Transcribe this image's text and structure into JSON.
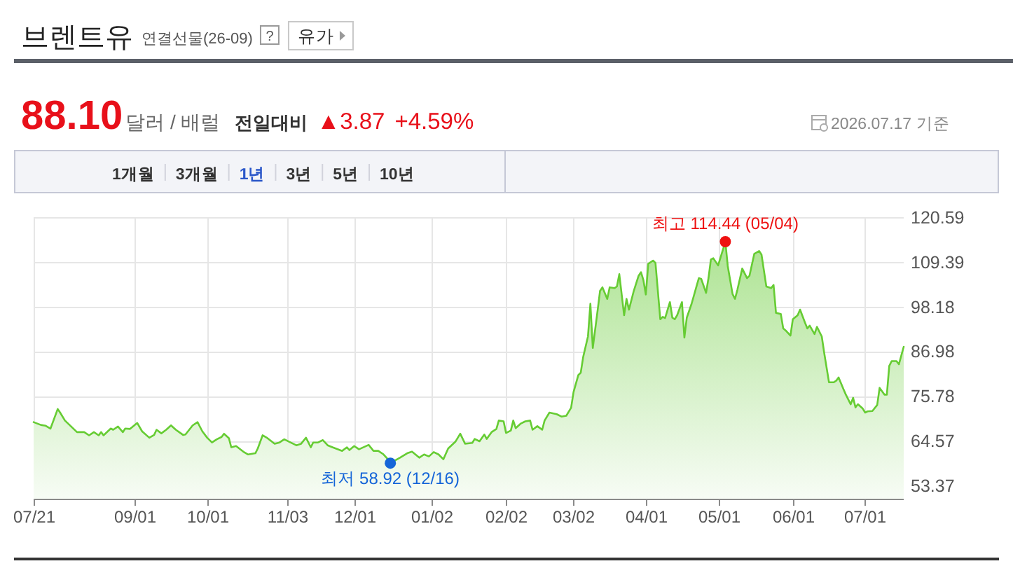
{
  "chart_data": {
    "type": "area",
    "title": "브렌트유",
    "subtitle": "연결선물(26-09)",
    "color": "#66cc33",
    "x": [
      "2025-07-21",
      "2025-07-24",
      "2025-07-26",
      "2025-07-28",
      "2025-07-31",
      "2025-08-01",
      "2025-08-03",
      "2025-08-08",
      "2025-08-11",
      "2025-08-13",
      "2025-08-15",
      "2025-08-17",
      "2025-08-18",
      "2025-08-19",
      "2025-08-22",
      "2025-08-23",
      "2025-08-25",
      "2025-08-27",
      "2025-08-28",
      "2025-08-30",
      "2025-09-02",
      "2025-09-04",
      "2025-09-07",
      "2025-09-09",
      "2025-09-10",
      "2025-09-12",
      "2025-09-14",
      "2025-09-16",
      "2025-09-18",
      "2025-09-21",
      "2025-09-22",
      "2025-09-25",
      "2025-09-27",
      "2025-09-29",
      "2025-10-01",
      "2025-10-03",
      "2025-10-05",
      "2025-10-07",
      "2025-10-08",
      "2025-10-10",
      "2025-10-11",
      "2025-10-13",
      "2025-10-16",
      "2025-10-18",
      "2025-10-21",
      "2025-10-22",
      "2025-10-24",
      "2025-10-26",
      "2025-10-29",
      "2025-10-31",
      "2025-11-02",
      "2025-11-04",
      "2025-11-07",
      "2025-11-09",
      "2025-11-11",
      "2025-11-13",
      "2025-11-14",
      "2025-11-16",
      "2025-11-18",
      "2025-11-20",
      "2025-11-22",
      "2025-11-26",
      "2025-11-28",
      "2025-11-29",
      "2025-12-01",
      "2025-12-03",
      "2025-12-07",
      "2025-12-09",
      "2025-12-11",
      "2025-12-13",
      "2025-12-15",
      "2025-12-16",
      "2025-12-20",
      "2025-12-23",
      "2025-12-25",
      "2025-12-28",
      "2025-12-30",
      "2026-01-01",
      "2026-01-03",
      "2026-01-05",
      "2026-01-07",
      "2026-01-09",
      "2026-01-12",
      "2026-01-14",
      "2026-01-16",
      "2026-01-19",
      "2026-01-20",
      "2026-01-22",
      "2026-01-24",
      "2026-01-25",
      "2026-01-27",
      "2026-01-29",
      "2026-01-30",
      "2026-02-01",
      "2026-02-02",
      "2026-02-04",
      "2026-02-05",
      "2026-02-06",
      "2026-02-08",
      "2026-02-10",
      "2026-02-12",
      "2026-02-13",
      "2026-02-15",
      "2026-02-17",
      "2026-02-18",
      "2026-02-20",
      "2026-02-23",
      "2026-02-25",
      "2026-02-27",
      "2026-03-01",
      "2026-03-02",
      "2026-03-04",
      "2026-03-05",
      "2026-03-06",
      "2026-03-08",
      "2026-03-09",
      "2026-03-10",
      "2026-03-12",
      "2026-03-13",
      "2026-03-14",
      "2026-03-16",
      "2026-03-17",
      "2026-03-19",
      "2026-03-20",
      "2026-03-21",
      "2026-03-23",
      "2026-03-24",
      "2026-03-25",
      "2026-03-27",
      "2026-03-29",
      "2026-03-30",
      "2026-03-31",
      "2026-04-01",
      "2026-04-02",
      "2026-04-04",
      "2026-04-05",
      "2026-04-07",
      "2026-04-08",
      "2026-04-09",
      "2026-04-11",
      "2026-04-12",
      "2026-04-13",
      "2026-04-14",
      "2026-04-16",
      "2026-04-17",
      "2026-04-18",
      "2026-04-20",
      "2026-04-22",
      "2026-04-23",
      "2026-04-24",
      "2026-04-26",
      "2026-04-27",
      "2026-04-28",
      "2026-04-29",
      "2026-05-01",
      "2026-05-04",
      "2026-05-05",
      "2026-05-07",
      "2026-05-08",
      "2026-05-09",
      "2026-05-11",
      "2026-05-13",
      "2026-05-14",
      "2026-05-16",
      "2026-05-18",
      "2026-05-19",
      "2026-05-21",
      "2026-05-23",
      "2026-05-24",
      "2026-05-25",
      "2026-05-27",
      "2026-05-28",
      "2026-05-29",
      "2026-05-31",
      "2026-06-01",
      "2026-06-03",
      "2026-06-04",
      "2026-06-06",
      "2026-06-07",
      "2026-06-08",
      "2026-06-10",
      "2026-06-11",
      "2026-06-13",
      "2026-06-14",
      "2026-06-16",
      "2026-06-18",
      "2026-06-19",
      "2026-06-20",
      "2026-06-22",
      "2026-06-23",
      "2026-06-25",
      "2026-06-26",
      "2026-06-27",
      "2026-06-28",
      "2026-06-30",
      "2026-07-01",
      "2026-07-02",
      "2026-07-04",
      "2026-07-06",
      "2026-07-07",
      "2026-07-09",
      "2026-07-10",
      "2026-07-11",
      "2026-07-12",
      "2026-07-14",
      "2026-07-15",
      "2026-07-17"
    ],
    "values": [
      69.2,
      68.5,
      68.3,
      67.6,
      72.5,
      71.6,
      69.6,
      66.7,
      66.7,
      65.9,
      66.7,
      65.9,
      66.7,
      65.9,
      67.6,
      67.3,
      68.1,
      66.7,
      67.6,
      67.5,
      69.0,
      66.9,
      65.3,
      66.0,
      67.3,
      66.4,
      67.3,
      68.4,
      67.3,
      66.0,
      66.1,
      68.4,
      69.2,
      66.9,
      65.3,
      64.1,
      64.9,
      65.5,
      66.3,
      65.2,
      62.9,
      63.2,
      61.8,
      61.1,
      61.4,
      62.6,
      65.9,
      65.2,
      63.8,
      64.1,
      64.9,
      64.3,
      63.4,
      63.8,
      65.3,
      62.9,
      64.1,
      64.1,
      64.7,
      63.4,
      62.9,
      62.0,
      62.9,
      62.2,
      63.2,
      62.4,
      63.5,
      62.0,
      62.0,
      61.2,
      59.9,
      58.92,
      60.3,
      61.4,
      61.8,
      60.3,
      61.1,
      60.6,
      61.7,
      61.1,
      59.9,
      62.6,
      64.3,
      66.3,
      63.8,
      64.0,
      65.0,
      64.4,
      66.1,
      65.0,
      66.7,
      67.5,
      69.6,
      69.4,
      66.5,
      67.1,
      69.6,
      67.7,
      68.8,
      69.4,
      69.6,
      67.3,
      68.2,
      67.3,
      69.6,
      71.6,
      71.2,
      70.6,
      70.8,
      72.8,
      76.7,
      81.0,
      81.6,
      85.5,
      90.7,
      98.9,
      87.8,
      97.2,
      102.1,
      103.0,
      100.1,
      103.0,
      102.8,
      103.2,
      106.3,
      96.0,
      100.1,
      97.4,
      102.1,
      105.9,
      106.8,
      104.8,
      101.2,
      108.9,
      109.7,
      109.1,
      95.0,
      95.6,
      95.3,
      99.3,
      95.4,
      95.0,
      96.0,
      99.3,
      90.4,
      95.4,
      98.9,
      103.2,
      105.3,
      105.1,
      101.6,
      105.3,
      110.0,
      110.3,
      108.5,
      114.44,
      108.3,
      101.3,
      100.1,
      102.4,
      107.7,
      105.3,
      105.9,
      111.4,
      112.1,
      111.2,
      103.2,
      102.8,
      103.6,
      96.6,
      96.3,
      92.7,
      92.2,
      90.9,
      95.0,
      96.0,
      97.4,
      94.2,
      92.7,
      93.4,
      91.3,
      93.1,
      90.7,
      86.6,
      79.2,
      79.2,
      79.6,
      80.4,
      77.5,
      76.1,
      73.7,
      75.3,
      72.9,
      73.7,
      72.6,
      71.6,
      71.9,
      72.0,
      73.5,
      77.8,
      76.1,
      76.1,
      83.3,
      84.5,
      84.5,
      83.7,
      88.1
    ],
    "xlim": [
      "2025-07-21",
      "2026-07-17"
    ],
    "xticks": [
      {
        "value": "2025-07-21",
        "label": "07/21"
      },
      {
        "value": "2025-09-01",
        "label": "09/01"
      },
      {
        "value": "2025-10-01",
        "label": "10/01"
      },
      {
        "value": "2025-11-03",
        "label": "11/03"
      },
      {
        "value": "2025-12-01",
        "label": "12/01"
      },
      {
        "value": "2026-01-02",
        "label": "01/02"
      },
      {
        "value": "2026-02-02",
        "label": "02/02"
      },
      {
        "value": "2026-03-02",
        "label": "03/02"
      },
      {
        "value": "2026-04-01",
        "label": "04/01"
      },
      {
        "value": "2026-05-01",
        "label": "05/01"
      },
      {
        "value": "2026-06-01",
        "label": "06/01"
      },
      {
        "value": "2026-07-01",
        "label": "07/01"
      }
    ],
    "ylim": [
      50,
      120.59
    ],
    "yticks": [
      53.37,
      64.57,
      75.78,
      86.98,
      98.18,
      109.39,
      120.59
    ],
    "grid": true,
    "annotations": [
      "?",
      "유가",
      "88.10",
      "달러 / 배럴",
      "전일대비",
      "▲3.87",
      "+4.59%",
      "2026.07.17 기준",
      "1개월",
      "3개월",
      "1년",
      "3년",
      "5년",
      "10년",
      {
        "text": "최고 114.44 (05/04)",
        "x": "2026-05-04",
        "y": 114.44
      },
      {
        "text": "최저 58.92 (12/16)",
        "x": "2025-12-16",
        "y": 58.92
      }
    ]
  }
}
